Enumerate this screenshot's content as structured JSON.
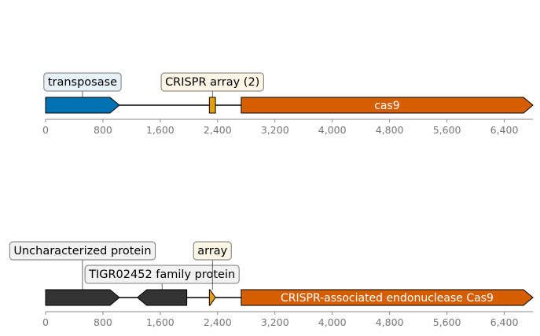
{
  "tracks": [
    {
      "name": "track-top",
      "features": [
        {
          "id": "transposase",
          "start": 0,
          "end": 1030,
          "strand": 1,
          "color": "#0072b2",
          "label": "transposase",
          "label_bg": "#e6f1f8",
          "inner_label": ""
        },
        {
          "id": "crispr-array-2",
          "start": 2285,
          "end": 2370,
          "strand": 0,
          "color": "#e69f00",
          "label": "CRISPR array (2)",
          "label_bg": "#fdf5e6",
          "inner_label": ""
        },
        {
          "id": "cas9",
          "start": 2730,
          "end": 6800,
          "strand": 1,
          "color": "#d55e00",
          "label": "",
          "label_bg": "",
          "inner_label": "cas9"
        }
      ]
    },
    {
      "name": "track-bottom",
      "features": [
        {
          "id": "uncharacterized-protein",
          "start": 0,
          "end": 1030,
          "strand": 1,
          "color": "#333333",
          "label": "Uncharacterized protein",
          "label_bg": "#f2f2f2",
          "inner_label": ""
        },
        {
          "id": "tigr02452",
          "start": 1280,
          "end": 1970,
          "strand": -1,
          "color": "#333333",
          "label": "TIGR02452 family protein",
          "label_bg": "#f2f2f2",
          "inner_label": ""
        },
        {
          "id": "array",
          "start": 2285,
          "end": 2370,
          "strand": 1,
          "color": "#e69f00",
          "label": "array",
          "label_bg": "#fdf5e6",
          "inner_label": ""
        },
        {
          "id": "cas9-endonuclease",
          "start": 2730,
          "end": 6800,
          "strand": 1,
          "color": "#d55e00",
          "label": "",
          "label_bg": "",
          "inner_label": "CRISPR-associated endonuclease Cas9"
        }
      ]
    }
  ],
  "axis": {
    "min": 0,
    "max": 6800,
    "ticks": [
      0,
      800,
      1600,
      2400,
      3200,
      4000,
      4800,
      5600,
      6400
    ],
    "tick_labels": [
      "0",
      "800",
      "1,600",
      "2,400",
      "3,200",
      "4,000",
      "4,800",
      "5,600",
      "6,400"
    ]
  }
}
